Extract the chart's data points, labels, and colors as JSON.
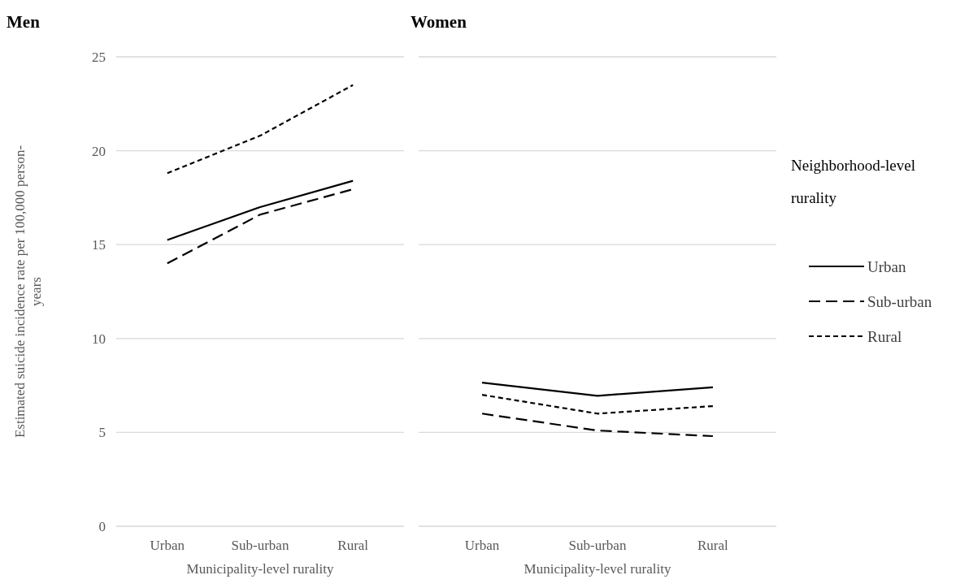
{
  "chart_data": [
    {
      "type": "line",
      "title": "Men",
      "xlabel": "Municipality-level rurality",
      "ylabel": "Estimated suicide incidence rate per 100,000 person-years",
      "categories": [
        "Urban",
        "Sub-urban",
        "Rural"
      ],
      "ylim": [
        0,
        25
      ],
      "yticks": [
        0,
        5,
        10,
        15,
        20,
        25
      ],
      "grid": "y",
      "marker": "none",
      "series": [
        {
          "color": "#000000",
          "line_style": "solid",
          "values": [
            15.25,
            17.0,
            18.4
          ]
        },
        {
          "color": "#000000",
          "line_style": "dashed",
          "values": [
            14.0,
            16.6,
            17.95
          ]
        },
        {
          "color": "#000000",
          "line_style": "dotted",
          "values": [
            18.8,
            20.8,
            23.5
          ]
        }
      ]
    },
    {
      "type": "line",
      "title": "Women",
      "xlabel": "Municipality-level rurality",
      "categories": [
        "Urban",
        "Sub-urban",
        "Rural"
      ],
      "ylim": [
        0,
        25
      ],
      "yticks": [
        0,
        5,
        10,
        15,
        20,
        25
      ],
      "grid": "y",
      "marker": "none",
      "tick_labels": "x",
      "legend": "right",
      "legend_title": "Neighborhood-level rurality",
      "series": [
        {
          "name": "Urban",
          "color": "#000000",
          "line_style": "solid",
          "values": [
            7.65,
            6.95,
            7.4
          ]
        },
        {
          "name": "Sub-urban",
          "color": "#000000",
          "line_style": "dashed",
          "values": [
            6.0,
            5.1,
            4.8
          ]
        },
        {
          "name": "Rural",
          "color": "#000000",
          "line_style": "dotted",
          "values": [
            7.0,
            6.0,
            6.4
          ]
        }
      ]
    }
  ]
}
